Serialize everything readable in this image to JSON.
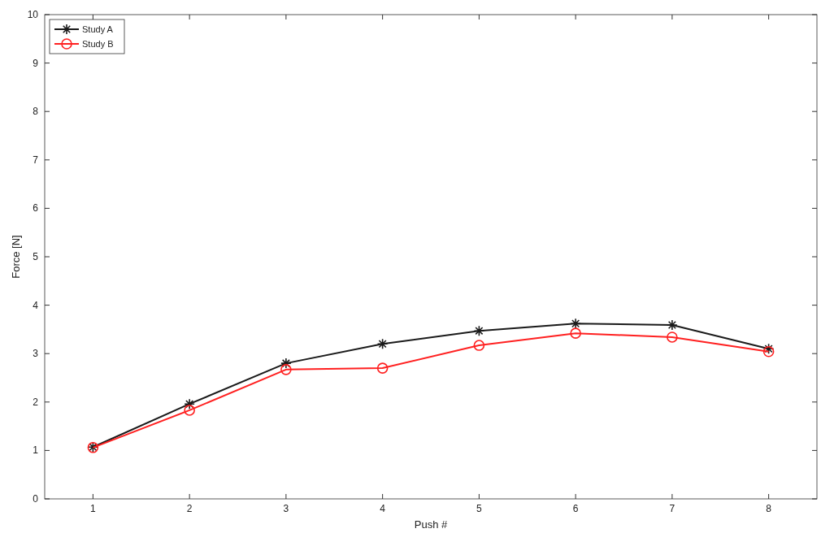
{
  "chart_data": {
    "type": "line",
    "xlabel": "Push #",
    "ylabel": "Force [N]",
    "xlim": [
      0.5,
      8.5
    ],
    "xticks": [
      1,
      2,
      3,
      4,
      5,
      6,
      7,
      8
    ],
    "ylim": [
      0,
      10
    ],
    "yticks": [
      0,
      1,
      2,
      3,
      4,
      5,
      6,
      7,
      8,
      9,
      10
    ],
    "x": [
      1,
      2,
      3,
      4,
      5,
      6,
      7,
      8
    ],
    "legend": "top left",
    "grid": false,
    "series": [
      {
        "name": "Study A",
        "color": "#1a1a1a",
        "marker": "cross",
        "values": [
          1.07,
          1.96,
          2.8,
          3.2,
          3.47,
          3.62,
          3.59,
          3.1
        ]
      },
      {
        "name": "Study B",
        "color": "#ff2020",
        "marker": "circle",
        "values": [
          1.06,
          1.83,
          2.67,
          2.7,
          3.17,
          3.42,
          3.34,
          3.04
        ]
      }
    ]
  }
}
